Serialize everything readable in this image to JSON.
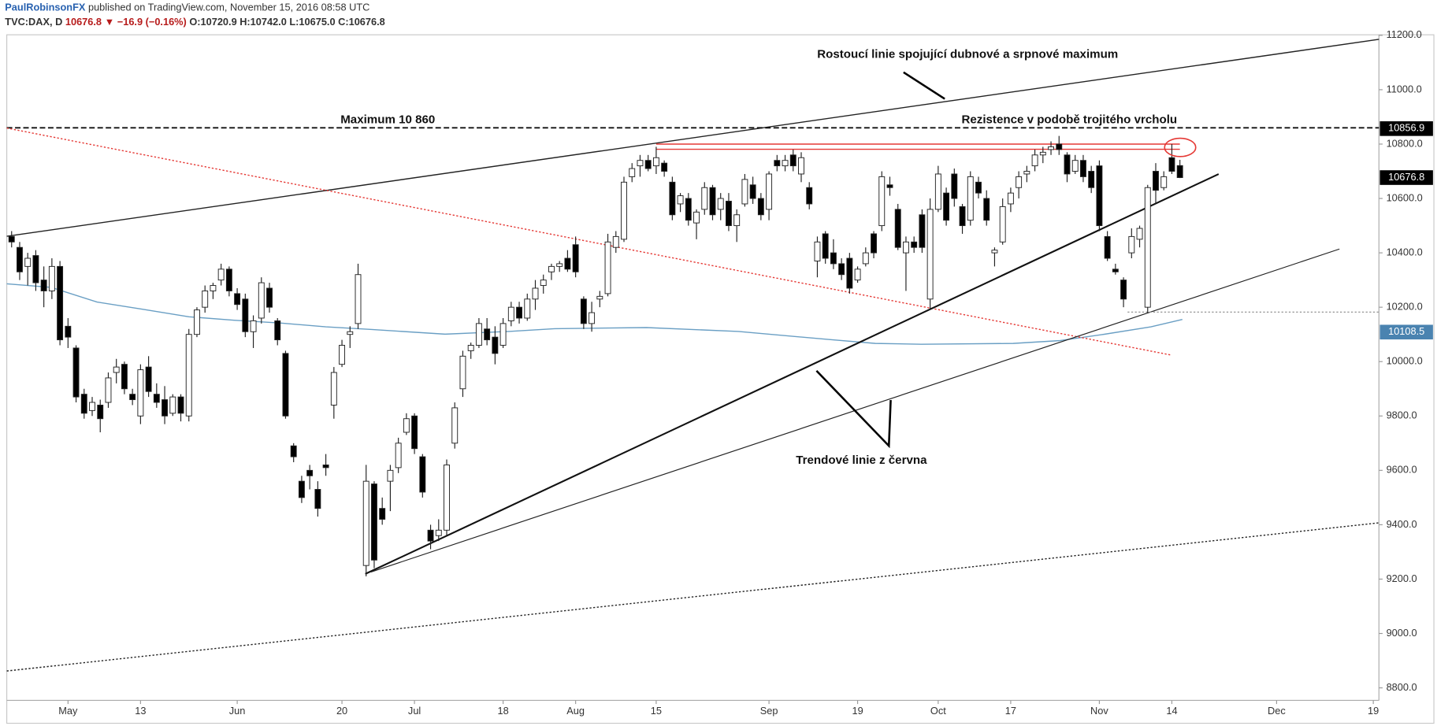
{
  "header": {
    "author": "PaulRobinsonFX",
    "published": "published on TradingView.com, November 15, 2016 08:58 UTC",
    "symbol": "TVC:DAX, D",
    "last": "10676.8",
    "arrow": "▼",
    "change": "−16.9 (−0.16%)",
    "open": "O:10720.9",
    "high": "H:10742.0",
    "low": "L:10675.0",
    "close": "C:10676.8"
  },
  "chart_data": {
    "type": "candlestick",
    "xlim": [
      -0.6,
      169.7
    ],
    "ylim": [
      8754,
      11202
    ],
    "xticks": [
      {
        "value": 7,
        "label": "May"
      },
      {
        "value": 16,
        "label": "13"
      },
      {
        "value": 28,
        "label": "Jun"
      },
      {
        "value": 41,
        "label": "20"
      },
      {
        "value": 50,
        "label": "Jul"
      },
      {
        "value": 61,
        "label": "18"
      },
      {
        "value": 70,
        "label": "Aug"
      },
      {
        "value": 80,
        "label": "15"
      },
      {
        "value": 94,
        "label": "Sep"
      },
      {
        "value": 105,
        "label": "19"
      },
      {
        "value": 115,
        "label": "Oct"
      },
      {
        "value": 124,
        "label": "17"
      },
      {
        "value": 135,
        "label": "Nov"
      },
      {
        "value": 144,
        "label": "14"
      },
      {
        "value": 157,
        "label": "Dec"
      },
      {
        "value": 169,
        "label": "19"
      }
    ],
    "yticks": [
      {
        "value": 8800,
        "label": "8800.0"
      },
      {
        "value": 9000,
        "label": "9000.0"
      },
      {
        "value": 9200,
        "label": "9200.0"
      },
      {
        "value": 9400,
        "label": "9400.0"
      },
      {
        "value": 9600,
        "label": "9600.0"
      },
      {
        "value": 9800,
        "label": "9800.0"
      },
      {
        "value": 10000,
        "label": "10000.0"
      },
      {
        "value": 10200,
        "label": "10200.0"
      },
      {
        "value": 10400,
        "label": "10400.0"
      },
      {
        "value": 10600,
        "label": "10600.0"
      },
      {
        "value": 10800,
        "label": "10800.0"
      },
      {
        "value": 11000,
        "label": "11000.0"
      },
      {
        "value": 11200,
        "label": "11200.0"
      }
    ],
    "up_color": "#ffffff",
    "down_color": "#000000",
    "wick_color": "#222222",
    "open": [
      10460,
      10420,
      10350,
      10390,
      10300,
      10260,
      10350,
      10130,
      10050,
      9880,
      9820,
      9840,
      9850,
      9960,
      9990,
      9880,
      9800,
      9980,
      9880,
      9860,
      9810,
      9870,
      9800,
      10100,
      10200,
      10260,
      10300,
      10340,
      10250,
      10230,
      10110,
      10160,
      10270,
      10150,
      10030,
      9690,
      9560,
      9600,
      9530,
      9620,
      9840,
      9990,
      10100,
      10140,
      9250,
      9550,
      9460,
      9560,
      9610,
      9740,
      9800,
      9650,
      9380,
      9360,
      9380,
      9700,
      9900,
      10040,
      10060,
      10120,
      10090,
      10060,
      10150,
      10200,
      10160,
      10230,
      10280,
      10330,
      10350,
      10380,
      10430,
      10230,
      10140,
      10230,
      10250,
      10420,
      10450,
      10680,
      10720,
      10740,
      10720,
      10730,
      10660,
      10580,
      10600,
      10510,
      10560,
      10640,
      10560,
      10590,
      10500,
      10580,
      10650,
      10600,
      10560,
      10740,
      10720,
      10760,
      10690,
      10640,
      10370,
      10470,
      10400,
      10360,
      10380,
      10300,
      10360,
      10470,
      10500,
      10650,
      10560,
      10400,
      10440,
      10540,
      10230,
      10560,
      10620,
      10690,
      10570,
      10520,
      10660,
      10600,
      10400,
      10440,
      10580,
      10640,
      10690,
      10720,
      10760,
      10780,
      10800,
      10760,
      10700,
      10740,
      10700,
      10720,
      10460,
      10340,
      10300,
      10400,
      10450,
      10200,
      10700,
      10640,
      10750,
      10720.9
    ],
    "high": [
      10480,
      10440,
      10400,
      10410,
      10350,
      10380,
      10370,
      10160,
      10060,
      9900,
      9870,
      9860,
      9960,
      10010,
      10000,
      9900,
      9990,
      10020,
      9920,
      9910,
      9880,
      9880,
      10120,
      10200,
      10280,
      10290,
      10360,
      10350,
      10270,
      10250,
      10170,
      10310,
      10290,
      10160,
      10040,
      9700,
      9580,
      9620,
      9560,
      9660,
      9980,
      10080,
      10130,
      10360,
      9620,
      9560,
      9500,
      9620,
      9720,
      9810,
      9810,
      9660,
      9400,
      9420,
      9640,
      9850,
      10040,
      10070,
      10160,
      10160,
      10130,
      10160,
      10220,
      10220,
      10250,
      10300,
      10320,
      10360,
      10370,
      10410,
      10460,
      10240,
      10220,
      10260,
      10470,
      10480,
      10680,
      10730,
      10760,
      10760,
      10790,
      10740,
      10680,
      10620,
      10620,
      10560,
      10660,
      10650,
      10620,
      10620,
      10560,
      10690,
      10680,
      10620,
      10700,
      10760,
      10760,
      10780,
      10770,
      10660,
      10460,
      10480,
      10450,
      10380,
      10400,
      10350,
      10420,
      10480,
      10700,
      10680,
      10580,
      10460,
      10460,
      10560,
      10600,
      10720,
      10640,
      10710,
      10580,
      10700,
      10680,
      10630,
      10420,
      10600,
      10640,
      10700,
      10720,
      10780,
      10790,
      10810,
      10830,
      10770,
      10760,
      10760,
      10720,
      10740,
      10480,
      10360,
      10310,
      10490,
      10500,
      10650,
      10730,
      10700,
      10800,
      10742
    ],
    "low": [
      10420,
      10300,
      10280,
      10260,
      10200,
      10230,
      10060,
      10050,
      9850,
      9790,
      9800,
      9740,
      9830,
      9920,
      9880,
      9840,
      9770,
      9870,
      9830,
      9770,
      9800,
      9780,
      9780,
      10090,
      10180,
      10230,
      10280,
      10240,
      10190,
      10090,
      10050,
      10140,
      10180,
      10060,
      9790,
      9630,
      9480,
      9530,
      9430,
      9580,
      9790,
      9980,
      10050,
      10120,
      9210,
      9240,
      9400,
      9450,
      9590,
      9730,
      9660,
      9500,
      9310,
      9340,
      9360,
      9680,
      9870,
      10010,
      10050,
      10060,
      9990,
      10050,
      10130,
      10140,
      10150,
      10190,
      10250,
      10300,
      10330,
      10330,
      10310,
      10120,
      10110,
      10200,
      10240,
      10400,
      10440,
      10660,
      10680,
      10700,
      10690,
      10680,
      10520,
      10550,
      10500,
      10450,
      10540,
      10520,
      10520,
      10480,
      10440,
      10570,
      10580,
      10520,
      10520,
      10700,
      10700,
      10700,
      10660,
      10560,
      10310,
      10360,
      10340,
      10300,
      10250,
      10290,
      10350,
      10380,
      10480,
      10610,
      10410,
      10260,
      10400,
      10400,
      10190,
      10550,
      10500,
      10570,
      10470,
      10500,
      10600,
      10500,
      10350,
      10430,
      10550,
      10600,
      10660,
      10700,
      10730,
      10760,
      10760,
      10660,
      10690,
      10660,
      10620,
      10480,
      10370,
      10320,
      10200,
      10380,
      10420,
      10180,
      10580,
      10630,
      10690,
      10675
    ],
    "close": [
      10440,
      10330,
      10380,
      10290,
      10260,
      10350,
      10080,
      10090,
      9870,
      9810,
      9850,
      9790,
      9940,
      9980,
      9900,
      9860,
      9970,
      9890,
      9850,
      9800,
      9870,
      9810,
      10100,
      10190,
      10260,
      10280,
      10340,
      10260,
      10210,
      10110,
      10150,
      10290,
      10200,
      10080,
      9800,
      9650,
      9500,
      9580,
      9460,
      9610,
      9960,
      10060,
      10110,
      10320,
      9560,
      9270,
      9420,
      9600,
      9700,
      9790,
      9680,
      9520,
      9340,
      9380,
      9620,
      9830,
      10020,
      10060,
      10140,
      10080,
      10030,
      10140,
      10200,
      10160,
      10230,
      10270,
      10300,
      10350,
      10360,
      10340,
      10330,
      10140,
      10180,
      10240,
      10440,
      10460,
      10660,
      10710,
      10740,
      10710,
      10750,
      10700,
      10540,
      10610,
      10520,
      10550,
      10640,
      10540,
      10600,
      10500,
      10540,
      10670,
      10600,
      10540,
      10690,
      10720,
      10740,
      10720,
      10750,
      10580,
      10440,
      10380,
      10360,
      10320,
      10270,
      10340,
      10400,
      10400,
      10680,
      10640,
      10420,
      10440,
      10420,
      10420,
      10560,
      10690,
      10520,
      10600,
      10500,
      10680,
      10620,
      10520,
      10410,
      10570,
      10620,
      10680,
      10700,
      10760,
      10770,
      10790,
      10780,
      10690,
      10740,
      10680,
      10640,
      10500,
      10380,
      10330,
      10230,
      10460,
      10490,
      10640,
      10630,
      10680,
      10700,
      10676.8
    ],
    "lines": [
      {
        "x": [
          -0.6,
          4.9,
          10.6,
          16.3,
          22,
          27.6,
          33.3,
          39,
          44.7,
          53.8,
          61.7,
          67.4,
          78.8,
          90.2,
          101.5,
          107.2,
          112.9,
          124.3,
          130,
          135.7,
          141.4,
          145.3
        ],
        "y": [
          10286,
          10273,
          10219,
          10192,
          10165,
          10152,
          10142,
          10128,
          10118,
          10101,
          10111,
          10121,
          10125,
          10111,
          10081,
          10067,
          10064,
          10067,
          10077,
          10101,
          10128,
          10155
        ],
        "color": "#6a9fc4",
        "style": "solid",
        "width": 1.2
      },
      {
        "x": [
          -0.6,
          169.7
        ],
        "y": [
          10461,
          11185
        ],
        "color": "#222222",
        "style": "solid",
        "width": 1.2
      },
      {
        "x": [
          -0.6,
          169.7
        ],
        "y": [
          10860,
          10860
        ],
        "color": "#111111",
        "style": "dashed",
        "width": 1.6
      },
      {
        "x": [
          -0.6,
          143.9
        ],
        "y": [
          10859,
          10024
        ],
        "color": "#e53935",
        "style": "dotted",
        "width": 1.2
      },
      {
        "x": [
          43.9,
          149.8
        ],
        "y": [
          9219,
          10690
        ],
        "color": "#111111",
        "style": "solid",
        "width": 1.8
      },
      {
        "x": [
          44.6,
          164.8
        ],
        "y": [
          9226,
          10414
        ],
        "color": "#222222",
        "style": "solid",
        "width": 1
      },
      {
        "x": [
          -0.6,
          169.7
        ],
        "y": [
          8862,
          9407
        ],
        "color": "#222222",
        "style": "dotted",
        "width": 1.2
      },
      {
        "x": [
          80,
          145
        ],
        "y": [
          10800,
          10800
        ],
        "color": "#e53935",
        "style": "solid",
        "width": 1.2
      },
      {
        "x": [
          80,
          145
        ],
        "y": [
          10781,
          10781
        ],
        "color": "#e53935",
        "style": "solid",
        "width": 1.2
      },
      {
        "x": [
          138.5,
          169.7
        ],
        "y": [
          10182,
          10182
        ],
        "color": "#888888",
        "style": "dotted",
        "width": 1
      }
    ],
    "price_labels": [
      {
        "value": 10856.9,
        "color": "#000000"
      },
      {
        "value": 10676.8,
        "color": "#000000"
      },
      {
        "value": 10108.5,
        "color": "#4a83b0"
      }
    ],
    "annotations": [
      "Rostoucí linie spojující dubnové a srpnové maximum",
      "Maximum 10 860",
      "Rezistence v podobě trojitého vrcholu",
      "Trendové linie z června"
    ]
  }
}
